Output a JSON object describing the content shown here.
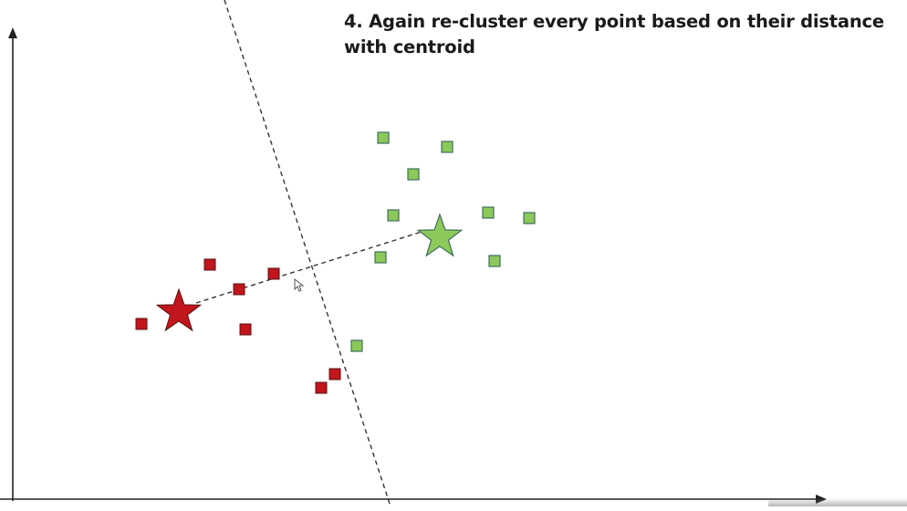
{
  "caption": "4. Again re-cluster every point based on their distance with centroid",
  "colors": {
    "red_cluster": "#c0161c",
    "red_border": "#5a1014",
    "green_cluster": "#8cc85a",
    "green_border": "#3f6e5e",
    "axes": "#222222",
    "dashed": "#333333"
  },
  "icons": [
    "x-axis-arrow-icon",
    "y-axis-arrow-icon",
    "mouse-cursor-icon",
    "star-centroid-icon"
  ],
  "points": {
    "red": [
      [
        230,
        290
      ],
      [
        300,
        300
      ],
      [
        262,
        317
      ],
      [
        155,
        355
      ],
      [
        269,
        361
      ],
      [
        367,
        410
      ],
      [
        352,
        425
      ]
    ],
    "green": [
      [
        420,
        151
      ],
      [
        490,
        161
      ],
      [
        453,
        191
      ],
      [
        431,
        236
      ],
      [
        535,
        233
      ],
      [
        580,
        239
      ],
      [
        417,
        282
      ],
      [
        542,
        286
      ],
      [
        391,
        379
      ]
    ]
  },
  "centroids": {
    "red": [
      196,
      342
    ],
    "green": [
      482,
      260
    ]
  },
  "boundary_line": [
    [
      246,
      0
    ],
    [
      428,
      555
    ]
  ],
  "centroid_link": [
    [
      215,
      332
    ],
    [
      462,
      254
    ]
  ]
}
